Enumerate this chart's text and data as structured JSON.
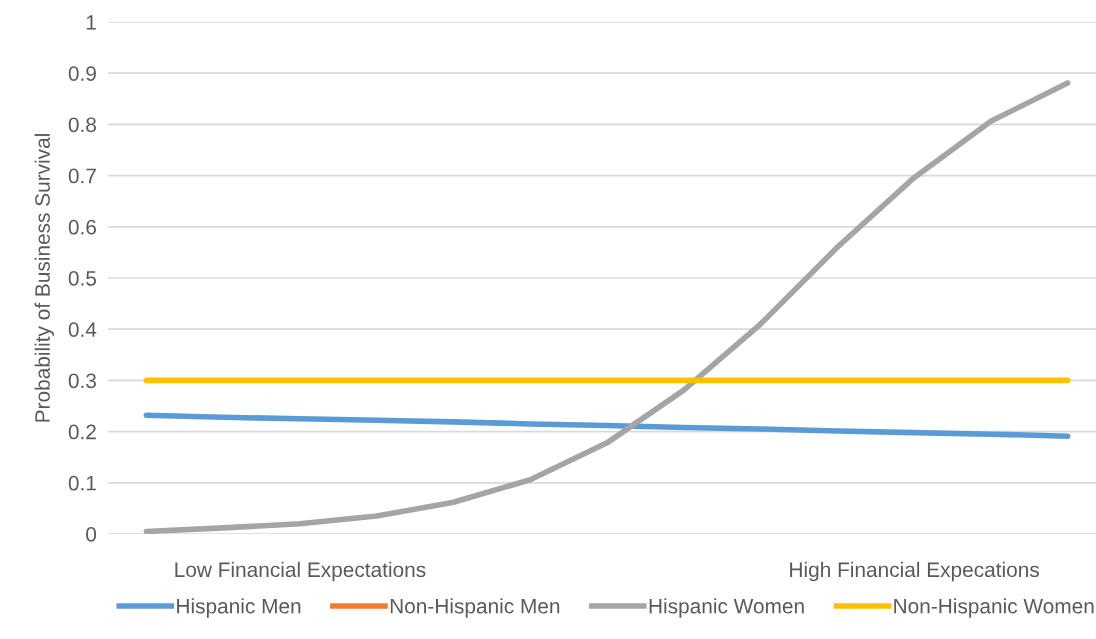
{
  "chart_data": {
    "type": "line",
    "ylabel": "Probability of Business Survival",
    "categories": [
      null,
      null,
      "Low Financial Expectations",
      null,
      null,
      null,
      null,
      null,
      null,
      null,
      "High Financial Expecations",
      null,
      null
    ],
    "series": [
      {
        "name": "Hispanic Men",
        "color": "#5b9bd5",
        "values": [
          0.232,
          0.228,
          0.225,
          0.222,
          0.219,
          0.215,
          0.212,
          0.208,
          0.205,
          0.201,
          0.198,
          0.195,
          0.191
        ]
      },
      {
        "name": "Non-Hispanic Men",
        "color": "#ed7d31",
        "values": [
          null,
          null,
          null,
          null,
          null,
          null,
          null,
          null,
          null,
          null,
          null,
          null,
          null
        ]
      },
      {
        "name": "Hispanic Women",
        "color": "#a5a5a5",
        "values": [
          0.005,
          0.012,
          0.02,
          0.035,
          0.062,
          0.106,
          0.178,
          0.281,
          0.41,
          0.56,
          0.696,
          0.806,
          0.881
        ]
      },
      {
        "name": "Non-Hispanic Women",
        "color": "#ffc000",
        "values": [
          0.3,
          0.3,
          0.3,
          0.3,
          0.3,
          0.3,
          0.3,
          0.3,
          0.3,
          0.3,
          0.3,
          0.3,
          0.3
        ]
      }
    ],
    "ylim": [
      0,
      1
    ],
    "yticks": [
      0,
      0.1,
      0.2,
      0.3,
      0.4,
      0.5,
      0.6,
      0.7,
      0.8,
      0.9,
      1
    ],
    "grid": "y",
    "legend": "bottom",
    "marker": "none",
    "line_style": "solid"
  }
}
